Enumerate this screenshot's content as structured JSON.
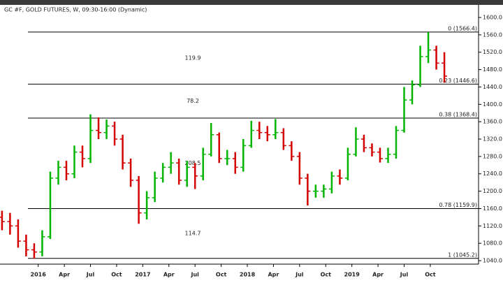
{
  "chart_data": {
    "type": "ohlc",
    "title": "GC #F, GOLD FUTURES, W, 09:30-16:00 (Dynamic)",
    "x": [
      -18,
      -14,
      -10,
      -6,
      -2,
      2,
      6,
      10,
      14,
      18,
      22,
      26,
      30,
      34,
      38,
      42,
      46,
      50,
      54,
      58,
      62,
      66,
      70,
      74,
      78,
      82,
      86,
      90,
      94,
      98,
      102,
      106,
      110,
      114,
      118,
      122,
      126,
      130,
      134,
      138,
      142,
      146,
      150,
      154,
      158,
      162,
      166,
      170,
      174,
      178,
      182,
      186,
      190,
      194,
      198,
      202
    ],
    "open": [
      1140,
      1130,
      1120,
      1085,
      1065,
      1060,
      1095,
      1230,
      1255,
      1240,
      1290,
      1275,
      1340,
      1335,
      1350,
      1320,
      1265,
      1225,
      1150,
      1185,
      1230,
      1255,
      1265,
      1225,
      1255,
      1235,
      1285,
      1330,
      1275,
      1275,
      1255,
      1305,
      1340,
      1335,
      1330,
      1335,
      1305,
      1280,
      1230,
      1200,
      1200,
      1205,
      1235,
      1230,
      1285,
      1320,
      1300,
      1290,
      1275,
      1285,
      1340,
      1410,
      1445,
      1510,
      1525,
      1495
    ],
    "high": [
      1155,
      1150,
      1135,
      1100,
      1080,
      1110,
      1245,
      1270,
      1270,
      1305,
      1305,
      1377,
      1370,
      1365,
      1360,
      1330,
      1275,
      1235,
      1200,
      1245,
      1265,
      1290,
      1275,
      1270,
      1265,
      1300,
      1357,
      1335,
      1295,
      1290,
      1320,
      1362,
      1360,
      1350,
      1366,
      1345,
      1315,
      1290,
      1240,
      1215,
      1215,
      1245,
      1250,
      1300,
      1347,
      1330,
      1310,
      1300,
      1300,
      1350,
      1440,
      1455,
      1535,
      1566,
      1535,
      1520
    ],
    "low": [
      1110,
      1100,
      1070,
      1050,
      1045,
      1050,
      1090,
      1215,
      1225,
      1230,
      1255,
      1265,
      1320,
      1320,
      1305,
      1250,
      1210,
      1125,
      1135,
      1175,
      1220,
      1240,
      1215,
      1210,
      1205,
      1225,
      1280,
      1265,
      1260,
      1240,
      1245,
      1300,
      1320,
      1315,
      1320,
      1295,
      1270,
      1215,
      1167,
      1185,
      1185,
      1195,
      1215,
      1225,
      1280,
      1290,
      1280,
      1266,
      1265,
      1275,
      1335,
      1400,
      1440,
      1495,
      1480,
      1450
    ],
    "close": [
      1130,
      1120,
      1085,
      1065,
      1060,
      1095,
      1230,
      1255,
      1240,
      1290,
      1275,
      1340,
      1335,
      1350,
      1320,
      1265,
      1225,
      1150,
      1185,
      1230,
      1255,
      1265,
      1225,
      1255,
      1235,
      1285,
      1330,
      1275,
      1275,
      1255,
      1305,
      1340,
      1335,
      1330,
      1335,
      1305,
      1280,
      1230,
      1200,
      1200,
      1205,
      1235,
      1230,
      1285,
      1320,
      1300,
      1290,
      1275,
      1285,
      1340,
      1410,
      1445,
      1510,
      1525,
      1495,
      1465
    ],
    "up_color": "#00b400",
    "down_color": "#d40000",
    "xlim": [
      -19,
      219
    ],
    "xticks": [
      {
        "value": 0,
        "label": "2016"
      },
      {
        "value": 13,
        "label": "Apr"
      },
      {
        "value": 26,
        "label": "Jul"
      },
      {
        "value": 39,
        "label": "Oct"
      },
      {
        "value": 52,
        "label": "2017"
      },
      {
        "value": 65,
        "label": "Apr"
      },
      {
        "value": 78,
        "label": "Jul"
      },
      {
        "value": 91,
        "label": "Oct"
      },
      {
        "value": 104,
        "label": "2018"
      },
      {
        "value": 117,
        "label": "Apr"
      },
      {
        "value": 130,
        "label": "Jul"
      },
      {
        "value": 143,
        "label": "Oct"
      },
      {
        "value": 156,
        "label": "2019"
      },
      {
        "value": 169,
        "label": "Apr"
      },
      {
        "value": 182,
        "label": "Jul"
      },
      {
        "value": 195,
        "label": "Oct"
      }
    ],
    "ylim": [
      1032,
      1629
    ],
    "yticks": [
      {
        "value": 1040,
        "label": "1040.0"
      },
      {
        "value": 1080,
        "label": "1080.0"
      },
      {
        "value": 1120,
        "label": "1120.0"
      },
      {
        "value": 1160,
        "label": "1160.0"
      },
      {
        "value": 1200,
        "label": "1200.0"
      },
      {
        "value": 1240,
        "label": "1240.0"
      },
      {
        "value": 1280,
        "label": "1280.0"
      },
      {
        "value": 1320,
        "label": "1320.0"
      },
      {
        "value": 1360,
        "label": "1360.0"
      },
      {
        "value": 1400,
        "label": "1400.0"
      },
      {
        "value": 1440,
        "label": "1440.0"
      },
      {
        "value": 1480,
        "label": "1480.0"
      },
      {
        "value": 1520,
        "label": "1520.0"
      },
      {
        "value": 1560,
        "label": "1560.0"
      },
      {
        "value": 1600,
        "label": "1600.0"
      }
    ],
    "fib_levels": [
      {
        "value": 1566.4,
        "label": "0 (1566.4)"
      },
      {
        "value": 1446.6,
        "label": "0.23 (1446.6)"
      },
      {
        "value": 1368.4,
        "label": "0.38 (1368.4)"
      },
      {
        "value": 1159.9,
        "label": "0.78 (1159.9)"
      },
      {
        "value": 1045.2,
        "label": "1 (1045.2)"
      }
    ],
    "fib_diffs": [
      "119.9",
      "78.2",
      "208.5",
      "114.7"
    ]
  }
}
